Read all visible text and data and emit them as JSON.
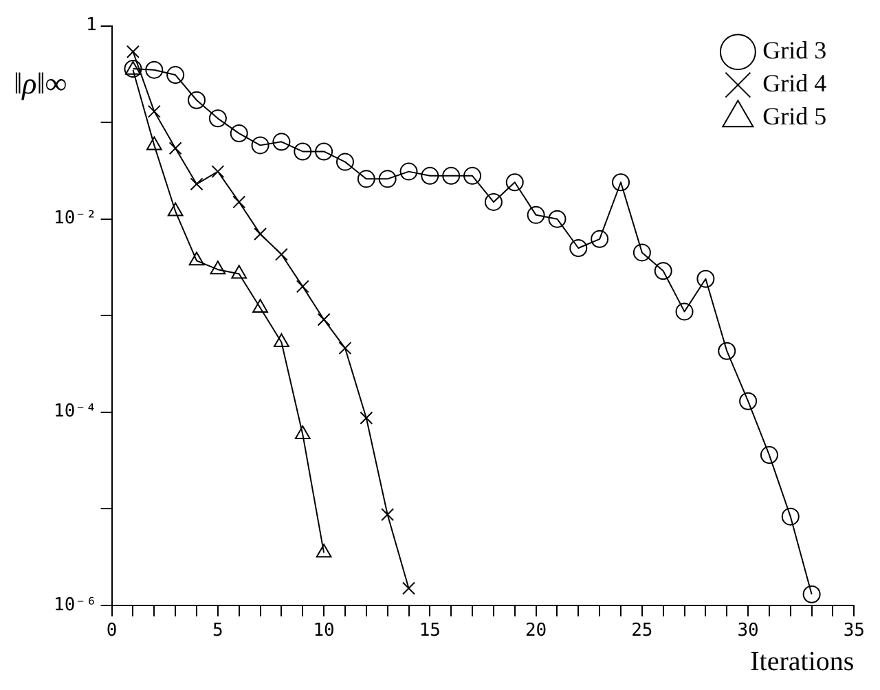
{
  "chart_data": {
    "type": "line",
    "xlabel": "Iterations",
    "ylabel": "‖ρ‖∞",
    "log": "y",
    "grid": false,
    "legend": "top right",
    "line_style": "solid",
    "xlim": [
      0,
      35
    ],
    "xticks": [
      0,
      {
        "value": 1,
        "label": null
      },
      {
        "value": 2,
        "label": null
      },
      {
        "value": 3,
        "label": null
      },
      {
        "value": 4,
        "label": null
      },
      5,
      {
        "value": 6,
        "label": null
      },
      {
        "value": 7,
        "label": null
      },
      {
        "value": 8,
        "label": null
      },
      {
        "value": 9,
        "label": null
      },
      10,
      {
        "value": 11,
        "label": null
      },
      {
        "value": 12,
        "label": null
      },
      {
        "value": 13,
        "label": null
      },
      {
        "value": 14,
        "label": null
      },
      15,
      {
        "value": 16,
        "label": null
      },
      {
        "value": 17,
        "label": null
      },
      {
        "value": 18,
        "label": null
      },
      {
        "value": 19,
        "label": null
      },
      20,
      {
        "value": 21,
        "label": null
      },
      {
        "value": 22,
        "label": null
      },
      {
        "value": 23,
        "label": null
      },
      {
        "value": 24,
        "label": null
      },
      25,
      {
        "value": 26,
        "label": null
      },
      {
        "value": 27,
        "label": null
      },
      {
        "value": 28,
        "label": null
      },
      {
        "value": 29,
        "label": null
      },
      30,
      {
        "value": 31,
        "label": null
      },
      {
        "value": 32,
        "label": null
      },
      {
        "value": 33,
        "label": null
      },
      {
        "value": 34,
        "label": null
      },
      35
    ],
    "ylim": [
      1e-06,
      1
    ],
    "yticks": [
      {
        "value": 1e-06,
        "label": "10⁻⁶"
      },
      {
        "value": 1e-05,
        "label": null
      },
      {
        "value": 0.0001,
        "label": "10⁻⁴"
      },
      {
        "value": 0.001,
        "label": null
      },
      {
        "value": 0.01,
        "label": "10⁻²"
      },
      {
        "value": 0.1,
        "label": null
      },
      1
    ],
    "series": [
      {
        "name": "Grid 3",
        "color": "#000000",
        "marker": "circle",
        "x": [
          1,
          2,
          3,
          4,
          5,
          6,
          7,
          8,
          9,
          10,
          11,
          12,
          13,
          14,
          15,
          16,
          17,
          18,
          19,
          20,
          21,
          22,
          23,
          24,
          25,
          26,
          27,
          28,
          29,
          30,
          31,
          32,
          33
        ],
        "values": [
          0.36,
          0.35,
          0.31,
          0.17,
          0.11,
          0.077,
          0.058,
          0.063,
          0.05,
          0.05,
          0.039,
          0.026,
          0.026,
          0.031,
          0.028,
          0.028,
          0.028,
          0.015,
          0.024,
          0.011,
          0.01,
          0.005,
          0.0062,
          0.024,
          0.0045,
          0.0029,
          0.0011,
          0.0024,
          0.00043,
          0.00013,
          3.6e-05,
          8.3e-06,
          1.3e-06
        ]
      },
      {
        "name": "Grid 4",
        "color": "#000000",
        "marker": "cross",
        "x": [
          1,
          2,
          3,
          4,
          5,
          6,
          7,
          8,
          9,
          10,
          11,
          12,
          13,
          14
        ],
        "values": [
          0.54,
          0.13,
          0.054,
          0.023,
          0.031,
          0.015,
          0.007,
          0.0043,
          0.002,
          0.00091,
          0.00046,
          8.7e-05,
          8.7e-06,
          1.5e-06
        ]
      },
      {
        "name": "Grid 5",
        "color": "#000000",
        "marker": "triangle",
        "x": [
          1,
          2,
          3,
          4,
          5,
          6,
          7,
          8,
          9,
          10
        ],
        "values": [
          0.35,
          0.058,
          0.012,
          0.0037,
          0.003,
          0.0027,
          0.0012,
          0.00053,
          5.9e-05,
          3.5e-06
        ]
      }
    ]
  }
}
